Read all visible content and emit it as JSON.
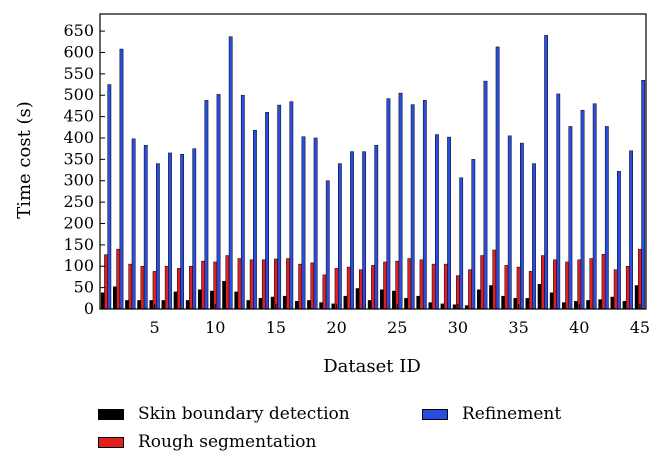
{
  "chart_data": {
    "type": "bar",
    "xlabel": "Dataset ID",
    "ylabel": "Time cost (s)",
    "ylim": [
      0,
      690
    ],
    "xlim": [
      0.5,
      45.5
    ],
    "yticks": [
      0,
      50,
      100,
      150,
      200,
      250,
      300,
      350,
      400,
      450,
      500,
      550,
      600,
      650
    ],
    "xticks": [
      5,
      10,
      15,
      20,
      25,
      30,
      35,
      40,
      45
    ],
    "categories": [
      1,
      2,
      3,
      4,
      5,
      6,
      7,
      8,
      9,
      10,
      11,
      12,
      13,
      14,
      15,
      16,
      17,
      18,
      19,
      20,
      21,
      22,
      23,
      24,
      25,
      26,
      27,
      28,
      29,
      30,
      31,
      32,
      33,
      34,
      35,
      36,
      37,
      38,
      39,
      40,
      41,
      42,
      43,
      44,
      45
    ],
    "legend_position": "bottom",
    "series": [
      {
        "name": "Skin boundary detection",
        "color": "#000000",
        "values": [
          38,
          52,
          20,
          20,
          20,
          20,
          40,
          20,
          45,
          42,
          65,
          40,
          20,
          25,
          28,
          30,
          18,
          20,
          15,
          12,
          30,
          48,
          20,
          45,
          42,
          25,
          30,
          15,
          12,
          10,
          8,
          45,
          55,
          30,
          25,
          25,
          58,
          38,
          15,
          18,
          20,
          22,
          28,
          18,
          55
        ]
      },
      {
        "name": "Rough segmentation",
        "color": "#e02020",
        "values": [
          127,
          140,
          105,
          100,
          88,
          100,
          95,
          100,
          112,
          110,
          125,
          118,
          115,
          115,
          117,
          118,
          105,
          108,
          80,
          95,
          98,
          92,
          102,
          110,
          112,
          118,
          115,
          105,
          105,
          78,
          92,
          125,
          138,
          102,
          98,
          88,
          125,
          115,
          110,
          115,
          118,
          128,
          92,
          100,
          140
        ]
      },
      {
        "name": "Refinement",
        "color": "#2a4de0",
        "values": [
          525,
          608,
          398,
          383,
          340,
          365,
          362,
          375,
          488,
          502,
          637,
          500,
          418,
          460,
          477,
          485,
          403,
          400,
          300,
          340,
          368,
          368,
          383,
          492,
          505,
          478,
          488,
          408,
          402,
          307,
          350,
          533,
          613,
          405,
          388,
          340,
          640,
          503,
          427,
          465,
          480,
          427,
          322,
          370,
          535
        ]
      }
    ]
  }
}
